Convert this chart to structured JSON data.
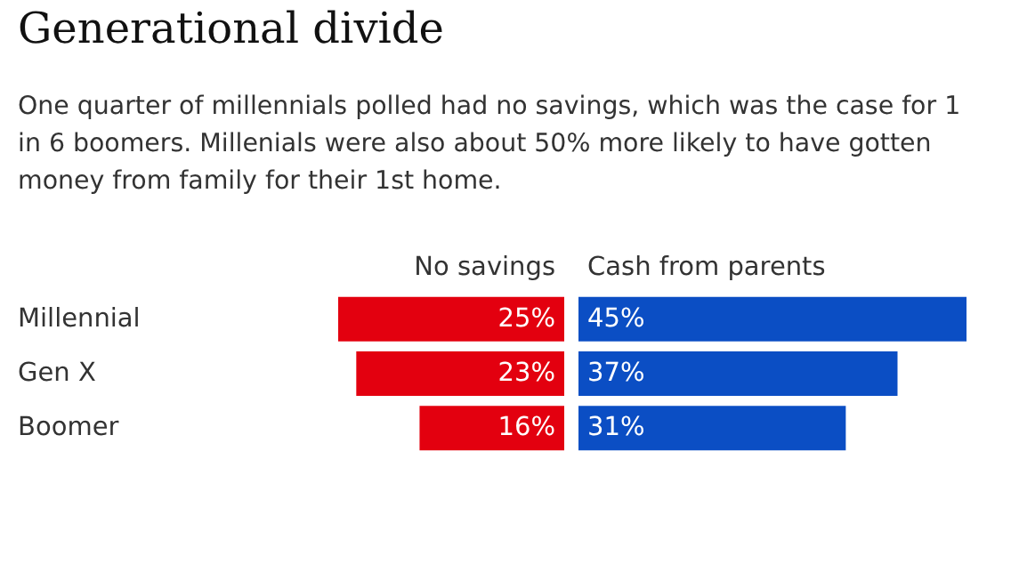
{
  "chart_data": [
    {
      "type": "bar",
      "orientation": "horizontal",
      "title": "Generational divide",
      "subtitle": "One quarter of millennials polled had no savings, which was the case for 1 in 6 boomers. Millenials were also about 50% more likely to have gotten money from family for their 1st home.",
      "categories": [
        "Millennial",
        "Gen X",
        "Boomer"
      ],
      "xlim": [
        25,
        0
      ],
      "tick_labels": "y",
      "series": [
        {
          "name": "No savings",
          "color": "#e3000f",
          "values": [
            25,
            23,
            16
          ],
          "value_labels": [
            "25%",
            "23%",
            "16%"
          ]
        }
      ]
    },
    {
      "type": "bar",
      "orientation": "horizontal",
      "categories": [
        null,
        null,
        null
      ],
      "xlim": [
        0,
        45
      ],
      "tick_labels": false,
      "series": [
        {
          "name": "Cash from parents",
          "color": "#0b4ec4",
          "values": [
            45,
            37,
            31
          ],
          "value_labels": [
            "45%",
            "37%",
            "31%"
          ]
        }
      ]
    }
  ]
}
